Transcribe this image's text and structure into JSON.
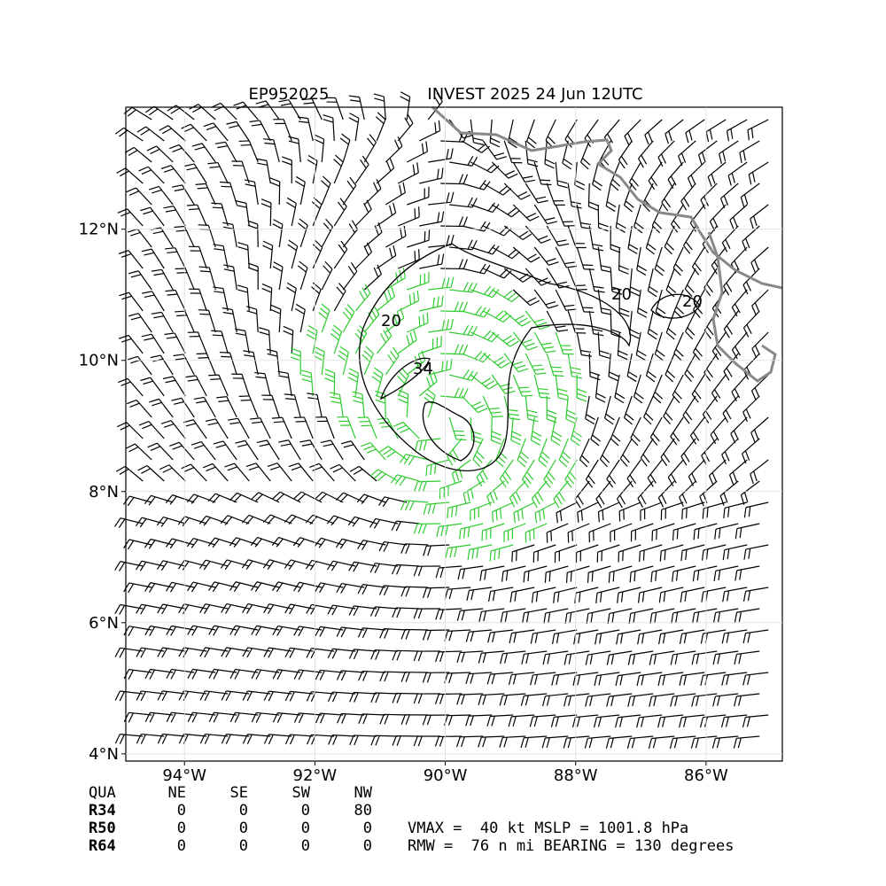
{
  "map": {
    "storm_id": "EP952025",
    "title": "INVEST 2025 24 Jun 12UTC",
    "xlim": [
      -94.9,
      -84.83
    ],
    "ylim": [
      3.89,
      13.86
    ],
    "xticks": [
      {
        "value": -94,
        "label": "94°W"
      },
      {
        "value": -92,
        "label": "92°W"
      },
      {
        "value": -90,
        "label": "90°W"
      },
      {
        "value": -88,
        "label": "88°W"
      },
      {
        "value": -86,
        "label": "86°W"
      }
    ],
    "yticks": [
      {
        "value": 4,
        "label": "4°N"
      },
      {
        "value": 6,
        "label": "6°N"
      },
      {
        "value": 8,
        "label": "8°N"
      },
      {
        "value": 10,
        "label": "10°N"
      },
      {
        "value": 12,
        "label": "12°N"
      }
    ],
    "grid": true,
    "contour_labels": [
      "20",
      "34",
      "20",
      "20"
    ]
  },
  "table": {
    "header": [
      "QUA",
      "NE",
      "SE",
      "SW",
      "NW"
    ],
    "rows": [
      [
        "R34",
        "0",
        "0",
        "0",
        "80"
      ],
      [
        "R50",
        "0",
        "0",
        "0",
        "0"
      ],
      [
        "R64",
        "0",
        "0",
        "0",
        "0"
      ]
    ],
    "lines": [
      "VMAX =  40 kt MSLP = 1001.8 hPa",
      "RMW =  76 n mi BEARING = 130 degrees"
    ]
  }
}
